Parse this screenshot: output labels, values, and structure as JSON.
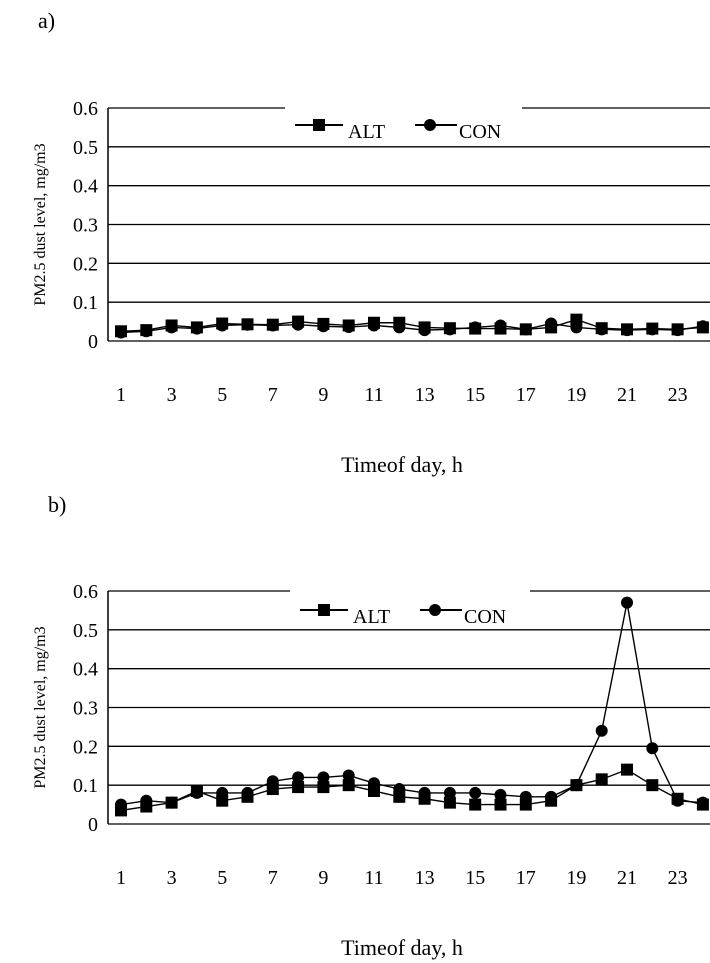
{
  "chart_data": [
    {
      "panel": "a)",
      "type": "line",
      "ylabel": "PM2.5 dust level, mg/m3",
      "xlabel": "Timeof day, h",
      "ylim": [
        0,
        0.6
      ],
      "yticks": [
        "0",
        "0.1",
        "0.2",
        "0.3",
        "0.4",
        "0.5",
        "0.6"
      ],
      "xticks": [
        "1",
        "3",
        "5",
        "7",
        "9",
        "11",
        "13",
        "15",
        "17",
        "19",
        "21",
        "23"
      ],
      "legend_position": "top-center",
      "grid": "horizontal",
      "x": [
        1,
        2,
        3,
        4,
        5,
        6,
        7,
        8,
        9,
        10,
        11,
        12,
        13,
        14,
        15,
        16,
        17,
        18,
        19,
        20,
        21,
        22,
        23,
        24
      ],
      "series": [
        {
          "name": "ALT",
          "marker": "square",
          "values": [
            0.025,
            0.028,
            0.04,
            0.035,
            0.045,
            0.043,
            0.042,
            0.05,
            0.044,
            0.04,
            0.047,
            0.047,
            0.035,
            0.033,
            0.032,
            0.032,
            0.03,
            0.035,
            0.055,
            0.033,
            0.03,
            0.032,
            0.03,
            0.035
          ]
        },
        {
          "name": "CON",
          "marker": "circle",
          "values": [
            0.022,
            0.025,
            0.035,
            0.032,
            0.04,
            0.042,
            0.04,
            0.042,
            0.038,
            0.036,
            0.04,
            0.035,
            0.028,
            0.03,
            0.035,
            0.04,
            0.03,
            0.045,
            0.035,
            0.03,
            0.028,
            0.03,
            0.028,
            0.038
          ]
        }
      ]
    },
    {
      "panel": "b)",
      "type": "line",
      "ylabel": "PM2.5 dust level, mg/m3",
      "xlabel": "Timeof day, h",
      "ylim": [
        0,
        0.6
      ],
      "yticks": [
        "0",
        "0.1",
        "0.2",
        "0.3",
        "0.4",
        "0.5",
        "0.6"
      ],
      "xticks": [
        "1",
        "3",
        "5",
        "7",
        "9",
        "11",
        "13",
        "15",
        "17",
        "19",
        "21",
        "23"
      ],
      "legend_position": "top-center",
      "grid": "horizontal",
      "x": [
        1,
        2,
        3,
        4,
        5,
        6,
        7,
        8,
        9,
        10,
        11,
        12,
        13,
        14,
        15,
        16,
        17,
        18,
        19,
        20,
        21,
        22,
        23,
        24
      ],
      "series": [
        {
          "name": "ALT",
          "marker": "square",
          "values": [
            0.035,
            0.045,
            0.055,
            0.085,
            0.06,
            0.07,
            0.09,
            0.095,
            0.095,
            0.1,
            0.085,
            0.07,
            0.065,
            0.055,
            0.05,
            0.05,
            0.05,
            0.06,
            0.1,
            0.115,
            0.14,
            0.1,
            0.065,
            0.05
          ]
        },
        {
          "name": "CON",
          "marker": "circle",
          "values": [
            0.05,
            0.06,
            0.055,
            0.08,
            0.08,
            0.08,
            0.11,
            0.12,
            0.12,
            0.125,
            0.105,
            0.09,
            0.08,
            0.08,
            0.08,
            0.075,
            0.07,
            0.07,
            0.1,
            0.24,
            0.57,
            0.195,
            0.06,
            0.055
          ]
        }
      ]
    }
  ]
}
